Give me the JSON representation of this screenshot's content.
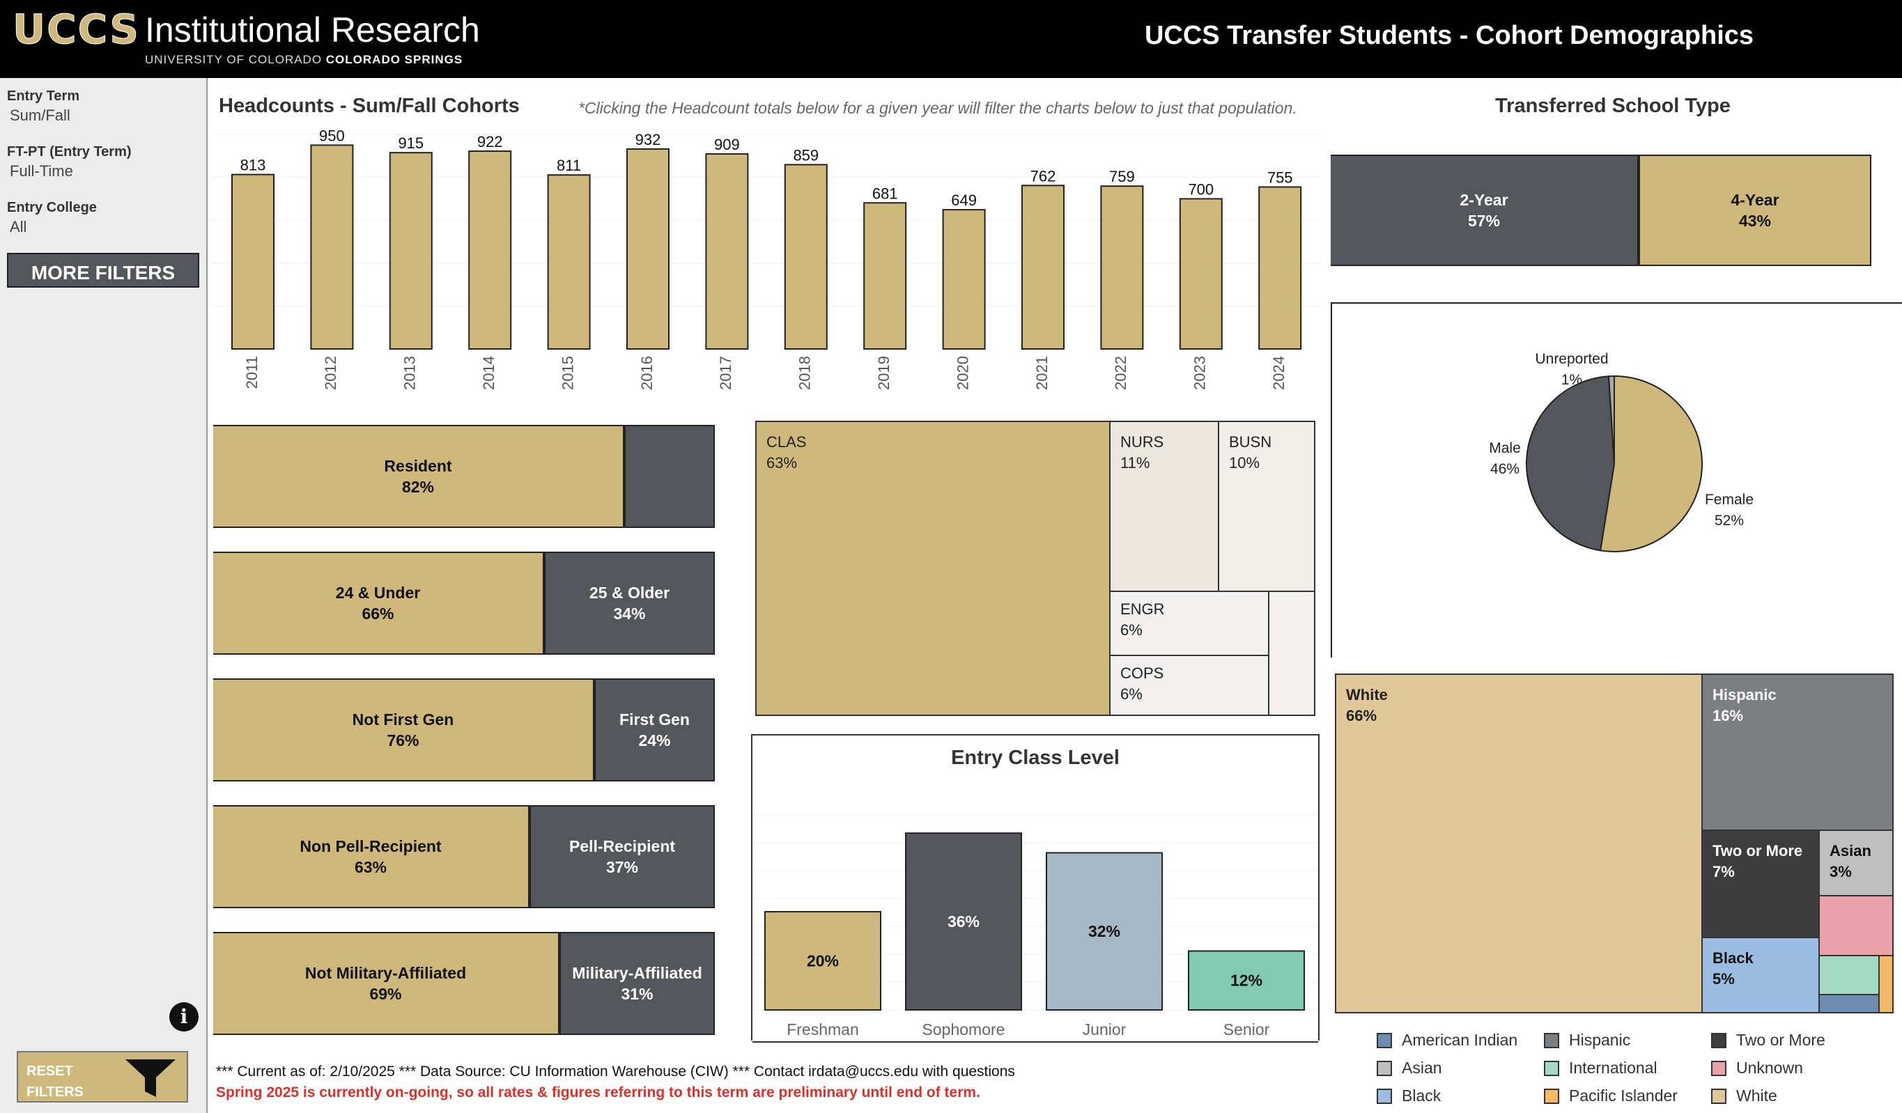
{
  "header": {
    "logo_mark": "UCCS",
    "logo_title": "Institutional Research",
    "logo_subtitle_plain": "UNIVERSITY OF COLORADO ",
    "logo_subtitle_bold": "COLORADO SPRINGS",
    "title": "UCCS Transfer Students - Cohort Demographics"
  },
  "sidebar": {
    "filters": [
      {
        "label": "Entry Term",
        "value": "Sum/Fall"
      },
      {
        "label": "FT-PT (Entry Term)",
        "value": "Full-Time"
      },
      {
        "label": "Entry College",
        "value": "All"
      }
    ],
    "more_filters_label": "MORE FILTERS",
    "info_icon": "i",
    "reset_label_line1": "RESET",
    "reset_label_line2": "FILTERS",
    "reset_icon": "funnel-icon"
  },
  "colors": {
    "gold": "#cfb87c",
    "dark_gray": "#53565a",
    "light_gold": "#dfc99a",
    "gray": "#7c7f82",
    "blue_gray": "#a8b9c6",
    "teal": "#82cbb2",
    "pink": "#e9a1ac",
    "light_blue": "#9dbde0",
    "slate_blue": "#6e8bb1",
    "orange": "#f2b968",
    "error_red": "#d9312b"
  },
  "headcounts": {
    "title": "Headcounts - Sum/Fall Cohorts",
    "note": "*Clicking the Headcount totals below for a given year will filter the charts below to just that population.",
    "chart_data": {
      "type": "bar",
      "categories": [
        "2011",
        "2012",
        "2013",
        "2014",
        "2015",
        "2016",
        "2017",
        "2018",
        "2019",
        "2020",
        "2021",
        "2022",
        "2023",
        "2024"
      ],
      "values": [
        813,
        950,
        915,
        922,
        811,
        932,
        909,
        859,
        681,
        649,
        762,
        759,
        700,
        755
      ],
      "ylim": [
        0,
        1000
      ]
    }
  },
  "splits": [
    {
      "left_label": "Resident",
      "left_pct": "82%",
      "right_label": "",
      "right_pct": "",
      "left_share": 0.82
    },
    {
      "left_label": "24 & Under",
      "left_pct": "66%",
      "right_label": "25 & Older",
      "right_pct": "34%",
      "left_share": 0.66
    },
    {
      "left_label": "Not First Gen",
      "left_pct": "76%",
      "right_label": "First Gen",
      "right_pct": "24%",
      "left_share": 0.76
    },
    {
      "left_label": "Non Pell-Recipient",
      "left_pct": "63%",
      "right_label": "Pell-Recipient",
      "right_pct": "37%",
      "left_share": 0.63
    },
    {
      "left_label": "Not Military-Affiliated",
      "left_pct": "69%",
      "right_label": "Military-Affiliated",
      "right_pct": "31%",
      "left_share": 0.69
    }
  ],
  "college_treemap": [
    {
      "label": "CLAS",
      "pct": "63%"
    },
    {
      "label": "NURS",
      "pct": "11%"
    },
    {
      "label": "BUSN",
      "pct": "10%"
    },
    {
      "label": "ENGR",
      "pct": "6%"
    },
    {
      "label": "COPS",
      "pct": "6%"
    }
  ],
  "entry_class": {
    "title": "Entry Class Level",
    "chart_data": {
      "type": "bar",
      "categories": [
        "Freshman",
        "Sophomore",
        "Junior",
        "Senior"
      ],
      "values": [
        20,
        36,
        32,
        12
      ],
      "labels": [
        "20%",
        "36%",
        "32%",
        "12%"
      ],
      "colors": [
        "#cfb87c",
        "#53565a",
        "#a8b9c6",
        "#82cbb2"
      ],
      "ylim": [
        0,
        40
      ]
    }
  },
  "school_type": {
    "title": "Transferred School Type",
    "chart_data": {
      "type": "bar",
      "categories": [
        "2-Year",
        "4-Year"
      ],
      "values": [
        57,
        43
      ],
      "labels": [
        "57%",
        "43%"
      ]
    }
  },
  "gender": {
    "chart_data": {
      "type": "pie",
      "categories": [
        "Female",
        "Male",
        "Unreported"
      ],
      "values": [
        52,
        46,
        1
      ],
      "labels": [
        "52%",
        "46%",
        "1%"
      ],
      "colors": [
        "#cfb87c",
        "#53565a",
        "#a9a9a9"
      ]
    }
  },
  "ethnicity": {
    "treemap": [
      {
        "label": "White",
        "pct": "66%"
      },
      {
        "label": "Hispanic",
        "pct": "16%"
      },
      {
        "label": "Two or More",
        "pct": "7%"
      },
      {
        "label": "Asian",
        "pct": "3%"
      },
      {
        "label": "Black",
        "pct": "5%"
      }
    ],
    "legend": [
      {
        "label": "American Indian",
        "color": "#6e8bb1"
      },
      {
        "label": "Hispanic",
        "color": "#7c7f82"
      },
      {
        "label": "Two or More",
        "color": "#3d3d3d"
      },
      {
        "label": "Asian",
        "color": "#bfbfbf"
      },
      {
        "label": "International",
        "color": "#a3d9c5"
      },
      {
        "label": "Unknown",
        "color": "#e9a1ac"
      },
      {
        "label": "Black",
        "color": "#9dbde0"
      },
      {
        "label": "Pacific Islander",
        "color": "#f2b968"
      },
      {
        "label": "White",
        "color": "#dfc99a"
      }
    ]
  },
  "footer": {
    "line1": "*** Current as of: 2/10/2025 *** Data Source: CU Information Warehouse (CIW) *** Contact irdata@uccs.edu with questions",
    "line2": "Spring 2025 is currently on-going, so all rates & figures referring to this term are preliminary until end of term."
  }
}
